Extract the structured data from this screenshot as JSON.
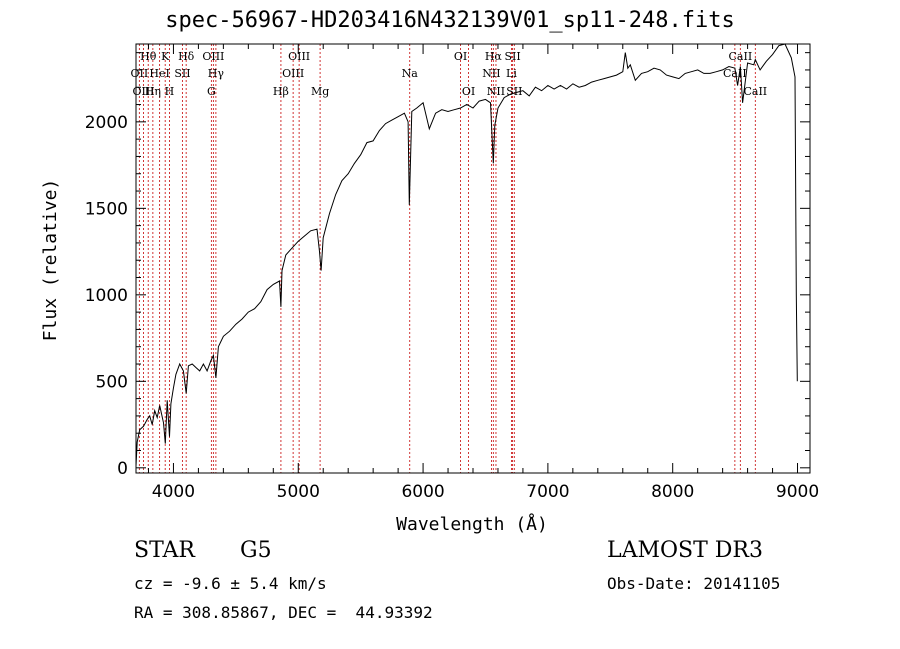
{
  "chart_data": {
    "type": "line",
    "title": "spec-56967-HD203416N432139V01_sp11-248.fits",
    "xlabel": "Wavelength (Å)",
    "ylabel": "Flux (relative)",
    "xlim": [
      3700,
      9100
    ],
    "ylim": [
      -30,
      2450
    ],
    "x_ticks": [
      4000,
      5000,
      6000,
      7000,
      8000,
      9000
    ],
    "y_ticks": [
      0,
      500,
      1000,
      1500,
      2000
    ],
    "series": [
      {
        "name": "flux",
        "x": [
          3700,
          3710,
          3730,
          3760,
          3790,
          3810,
          3830,
          3850,
          3870,
          3890,
          3920,
          3935,
          3950,
          3968,
          3980,
          4000,
          4020,
          4050,
          4080,
          4102,
          4120,
          4150,
          4180,
          4210,
          4240,
          4270,
          4300,
          4320,
          4340,
          4360,
          4380,
          4400,
          4450,
          4500,
          4550,
          4600,
          4650,
          4700,
          4750,
          4800,
          4850,
          4861,
          4870,
          4900,
          4950,
          5000,
          5050,
          5100,
          5150,
          5170,
          5183,
          5200,
          5250,
          5300,
          5350,
          5400,
          5450,
          5500,
          5550,
          5600,
          5650,
          5700,
          5750,
          5800,
          5850,
          5880,
          5890,
          5896,
          5910,
          5950,
          6000,
          6050,
          6100,
          6150,
          6200,
          6250,
          6300,
          6350,
          6400,
          6450,
          6500,
          6540,
          6563,
          6575,
          6600,
          6650,
          6700,
          6750,
          6800,
          6850,
          6900,
          6950,
          7000,
          7050,
          7100,
          7150,
          7200,
          7250,
          7300,
          7350,
          7400,
          7450,
          7500,
          7550,
          7600,
          7620,
          7640,
          7660,
          7700,
          7750,
          7800,
          7850,
          7900,
          7950,
          8000,
          8050,
          8100,
          8150,
          8200,
          8250,
          8300,
          8350,
          8400,
          8450,
          8498,
          8520,
          8542,
          8560,
          8600,
          8650,
          8662,
          8700,
          8750,
          8800,
          8850,
          8900,
          8950,
          8980,
          8990,
          8998
        ],
        "y": [
          10,
          150,
          220,
          240,
          280,
          300,
          250,
          330,
          290,
          360,
          260,
          140,
          390,
          180,
          370,
          460,
          540,
          600,
          560,
          430,
          590,
          600,
          580,
          560,
          600,
          560,
          620,
          650,
          520,
          700,
          730,
          760,
          790,
          830,
          860,
          900,
          920,
          960,
          1030,
          1060,
          1080,
          930,
          1140,
          1230,
          1270,
          1310,
          1340,
          1370,
          1380,
          1250,
          1140,
          1330,
          1470,
          1580,
          1660,
          1700,
          1760,
          1810,
          1880,
          1890,
          1950,
          1990,
          2010,
          2030,
          2050,
          2000,
          1520,
          1690,
          2060,
          2080,
          2110,
          1960,
          2050,
          2070,
          2060,
          2070,
          2080,
          2100,
          2080,
          2120,
          2130,
          2110,
          1760,
          1980,
          2080,
          2140,
          2160,
          2170,
          2180,
          2150,
          2200,
          2180,
          2210,
          2190,
          2210,
          2190,
          2220,
          2200,
          2210,
          2230,
          2240,
          2250,
          2260,
          2270,
          2290,
          2400,
          2310,
          2330,
          2240,
          2280,
          2290,
          2310,
          2300,
          2270,
          2260,
          2250,
          2280,
          2290,
          2300,
          2280,
          2280,
          2290,
          2300,
          2320,
          2310,
          2210,
          2320,
          2110,
          2340,
          2330,
          2360,
          2300,
          2350,
          2390,
          2440,
          2460,
          2370,
          2260,
          1000,
          500
        ]
      }
    ],
    "line_markers": [
      {
        "label": "Hθ",
        "wavelength": 3798,
        "row": 0
      },
      {
        "label": "OII",
        "wavelength": 3727,
        "row": 1
      },
      {
        "label": "OIII",
        "wavelength": 3760,
        "row": 2
      },
      {
        "label": "Hη",
        "wavelength": 3835,
        "row": 2
      },
      {
        "label": "HeI",
        "wavelength": 3889,
        "row": 1
      },
      {
        "label": "K",
        "wavelength": 3934,
        "row": 0
      },
      {
        "label": "H",
        "wavelength": 3968,
        "row": 2
      },
      {
        "label": "SII",
        "wavelength": 4072,
        "row": 1
      },
      {
        "label": "Hδ",
        "wavelength": 4102,
        "row": 0
      },
      {
        "label": "OIII",
        "wavelength": 4320,
        "row": 0
      },
      {
        "label": "Hγ",
        "wavelength": 4340,
        "row": 1
      },
      {
        "label": "G",
        "wavelength": 4304,
        "row": 2
      },
      {
        "label": "Hβ",
        "wavelength": 4861,
        "row": 2
      },
      {
        "label": "OIII",
        "wavelength": 4959,
        "row": 1
      },
      {
        "label": "OIII",
        "wavelength": 5007,
        "row": 0
      },
      {
        "label": "Mg",
        "wavelength": 5175,
        "row": 2
      },
      {
        "label": "Na",
        "wavelength": 5893,
        "row": 1
      },
      {
        "label": "OI",
        "wavelength": 6300,
        "row": 0
      },
      {
        "label": "OI",
        "wavelength": 6364,
        "row": 2
      },
      {
        "label": "Hα",
        "wavelength": 6563,
        "row": 0
      },
      {
        "label": "NII",
        "wavelength": 6548,
        "row": 1
      },
      {
        "label": "NII",
        "wavelength": 6584,
        "row": 2
      },
      {
        "label": "SII",
        "wavelength": 6717,
        "row": 0
      },
      {
        "label": "Li",
        "wavelength": 6708,
        "row": 1
      },
      {
        "label": "SII",
        "wavelength": 6731,
        "row": 2
      },
      {
        "label": "CaII",
        "wavelength": 8498,
        "row": 1
      },
      {
        "label": "CaII",
        "wavelength": 8542,
        "row": 0
      },
      {
        "label": "CaII",
        "wavelength": 8662,
        "row": 2
      }
    ]
  },
  "info": {
    "object_class": "STAR",
    "subclass": "G5",
    "survey": "LAMOST DR3",
    "cz": "cz = -9.6 ± 5.4 km/s",
    "obs_date": "Obs-Date: 20141105",
    "coords": "RA = 308.85867, DEC =  44.93392"
  }
}
